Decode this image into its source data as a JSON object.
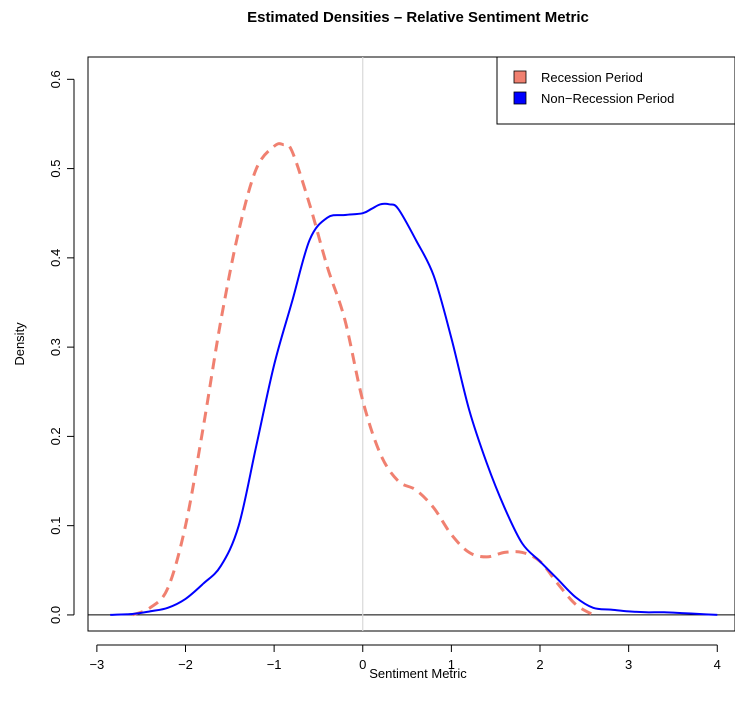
{
  "chart_data": {
    "type": "line",
    "title": "Estimated Densities – Relative Sentiment Metric",
    "xlabel": "Sentiment Metric",
    "ylabel": "Density",
    "xlim": [
      -3.1,
      4.2
    ],
    "ylim": [
      -0.018,
      0.625
    ],
    "xticks": [
      -3,
      -2,
      -1,
      0,
      1,
      2,
      3,
      4
    ],
    "xtick_labels": [
      "−3",
      "−2",
      "−1",
      "0",
      "1",
      "2",
      "3",
      "4"
    ],
    "yticks": [
      0.0,
      0.1,
      0.2,
      0.3,
      0.4,
      0.5,
      0.6
    ],
    "ytick_labels": [
      "0.0",
      "0.1",
      "0.2",
      "0.3",
      "0.4",
      "0.5",
      "0.6"
    ],
    "reference_lines": {
      "horizontal_y": 0,
      "vertical_x": 0
    },
    "grid": false,
    "legend_position": "top-right",
    "legend": [
      {
        "label": "Recession Period",
        "color": "#f08070"
      },
      {
        "label": "Non−Recession Period",
        "color": "#0000ff"
      }
    ],
    "series": [
      {
        "name": "Recession Period",
        "color": "#f08070",
        "style": "dashed",
        "x": [
          -2.6,
          -2.4,
          -2.2,
          -2.0,
          -1.8,
          -1.6,
          -1.4,
          -1.2,
          -1.0,
          -0.9,
          -0.8,
          -0.6,
          -0.4,
          -0.2,
          0.0,
          0.2,
          0.4,
          0.6,
          0.8,
          1.0,
          1.2,
          1.4,
          1.6,
          1.8,
          2.0,
          2.2,
          2.4,
          2.6
        ],
        "y": [
          0.0,
          0.008,
          0.03,
          0.1,
          0.21,
          0.33,
          0.43,
          0.5,
          0.525,
          0.527,
          0.52,
          0.46,
          0.39,
          0.33,
          0.24,
          0.18,
          0.15,
          0.14,
          0.12,
          0.09,
          0.07,
          0.065,
          0.07,
          0.07,
          0.06,
          0.035,
          0.012,
          0.0
        ]
      },
      {
        "name": "Non−Recession Period",
        "color": "#0000ff",
        "style": "solid",
        "x": [
          -2.85,
          -2.6,
          -2.4,
          -2.2,
          -2.0,
          -1.8,
          -1.6,
          -1.4,
          -1.2,
          -1.0,
          -0.8,
          -0.6,
          -0.4,
          -0.2,
          0.0,
          0.1,
          0.2,
          0.3,
          0.4,
          0.6,
          0.8,
          1.0,
          1.2,
          1.4,
          1.6,
          1.8,
          2.0,
          2.2,
          2.4,
          2.6,
          2.8,
          3.0,
          3.2,
          3.4,
          3.6,
          3.8,
          4.0
        ],
        "y": [
          0.0,
          0.001,
          0.004,
          0.008,
          0.018,
          0.035,
          0.055,
          0.1,
          0.19,
          0.28,
          0.35,
          0.42,
          0.445,
          0.448,
          0.45,
          0.455,
          0.46,
          0.46,
          0.455,
          0.42,
          0.38,
          0.31,
          0.23,
          0.17,
          0.12,
          0.08,
          0.06,
          0.04,
          0.02,
          0.008,
          0.006,
          0.004,
          0.003,
          0.003,
          0.002,
          0.001,
          0.0
        ]
      }
    ]
  }
}
